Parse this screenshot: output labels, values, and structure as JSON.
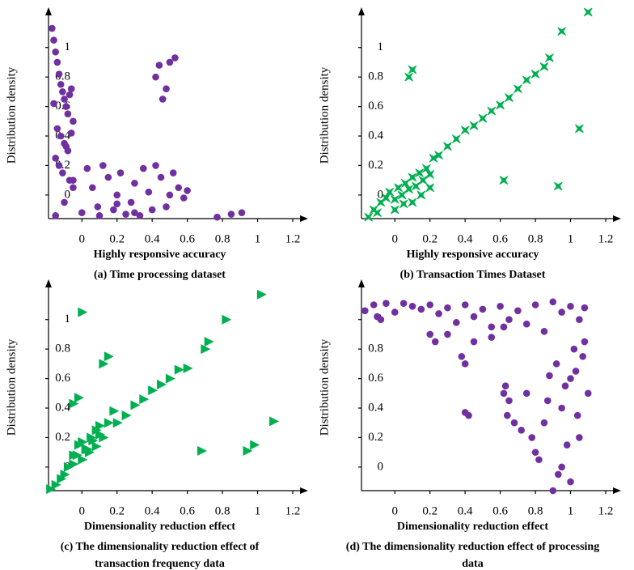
{
  "chart_data": [
    {
      "type": "scatter",
      "marker": "circle",
      "color": "#7030a0",
      "x_label": "Highly responsive accuracy",
      "y_label": "Distribution density",
      "caption": [
        "(a) Time processing dataset"
      ],
      "xlim": [
        -0.19,
        1.26
      ],
      "ylim": [
        -0.16,
        1.24
      ],
      "xticks": [
        0,
        0.2,
        0.4,
        0.6,
        0.8,
        1,
        1.2
      ],
      "yticks": [
        0,
        0.2,
        0.4,
        0.6,
        0.8,
        1
      ],
      "x": [
        -0.17,
        -0.16,
        -0.15,
        -0.14,
        -0.13,
        -0.12,
        -0.11,
        -0.1,
        -0.09,
        -0.08,
        -0.07,
        -0.06,
        -0.05,
        -0.16,
        -0.14,
        -0.12,
        -0.1,
        -0.08,
        -0.06,
        -0.15,
        -0.13,
        -0.11,
        -0.09,
        -0.07,
        -0.05,
        -0.15,
        -0.1,
        -0.05,
        0,
        0.03,
        0.06,
        0.09,
        0.12,
        0.15,
        0.18,
        0.2,
        0.22,
        0.25,
        0.28,
        0.3,
        0.33,
        0.35,
        0.38,
        0.4,
        0.42,
        0.45,
        0.48,
        0.5,
        0.52,
        0.55,
        0.58,
        0.6,
        0.1,
        0.2,
        0.3,
        0.42,
        0.44,
        0.46,
        0.48,
        0.5,
        0.53,
        0.77,
        0.85,
        0.91
      ],
      "values": [
        1.13,
        1.05,
        0.97,
        0.9,
        0.82,
        0.75,
        0.7,
        0.65,
        0.6,
        0.55,
        0.68,
        0.72,
        0.5,
        0.62,
        0.45,
        0.4,
        0.35,
        0.3,
        0.42,
        0.25,
        0.2,
        0.15,
        0.33,
        0.1,
        0.05,
        -0.14,
        -0.05,
        0.1,
        -0.12,
        0.18,
        0.05,
        -0.08,
        0.2,
        0.12,
        -0.1,
        0.0,
        0.15,
        -0.13,
        -0.05,
        0.08,
        -0.14,
        0.18,
        0.02,
        -0.1,
        0.2,
        0.12,
        -0.08,
        0.0,
        0.15,
        0.05,
        -0.02,
        0.03,
        -0.14,
        -0.06,
        -0.12,
        0.8,
        0.88,
        0.65,
        0.72,
        0.9,
        0.93,
        -0.15,
        -0.13,
        -0.12
      ]
    },
    {
      "type": "scatter",
      "marker": "star",
      "color": "#00b050",
      "x_label": "Highly responsive accuracy",
      "y_label": "Distribution density",
      "caption": [
        "(b) Transaction Times Dataset"
      ],
      "xlim": [
        -0.19,
        1.26
      ],
      "ylim": [
        -0.16,
        1.24
      ],
      "xticks": [
        0,
        0.2,
        0.4,
        0.6,
        0.8,
        1,
        1.2
      ],
      "yticks": [
        0,
        0.2,
        0.4,
        0.6,
        0.8,
        1
      ],
      "x": [
        -0.15,
        -0.12,
        -0.1,
        -0.08,
        -0.05,
        -0.03,
        0,
        0.02,
        0.04,
        0.06,
        0.08,
        0.1,
        0.12,
        0.14,
        0.16,
        0.18,
        0.2,
        0.22,
        0.25,
        0.3,
        0.35,
        0.4,
        0.45,
        0.5,
        0.55,
        0.6,
        0.65,
        0.7,
        0.75,
        0.8,
        0.85,
        0.88,
        0.95,
        1.1,
        0.05,
        0.08,
        0.1,
        0.62,
        0.93,
        1.05,
        0.0,
        0.1,
        0.15,
        0.2
      ],
      "values": [
        -0.15,
        -0.1,
        -0.12,
        -0.05,
        -0.02,
        0.02,
        -0.03,
        0.05,
        0.0,
        0.08,
        0.04,
        0.12,
        0.06,
        0.15,
        0.1,
        0.18,
        0.14,
        0.25,
        0.27,
        0.33,
        0.38,
        0.44,
        0.47,
        0.52,
        0.57,
        0.61,
        0.66,
        0.72,
        0.78,
        0.82,
        0.87,
        0.93,
        1.11,
        1.24,
        -0.06,
        0.8,
        0.85,
        0.1,
        0.06,
        0.45,
        -0.1,
        -0.05,
        0.0,
        0.05
      ]
    },
    {
      "type": "scatter",
      "marker": "triangle",
      "color": "#00b050",
      "x_label": "Dimensionality reduction effect",
      "y_label": "Distribution density",
      "caption": [
        "(c) The dimensionality reduction effect of",
        "transaction frequency data"
      ],
      "xlim": [
        -0.19,
        1.26
      ],
      "ylim": [
        -0.16,
        1.24
      ],
      "xticks": [
        0,
        0.2,
        0.4,
        0.6,
        0.8,
        1,
        1.2
      ],
      "yticks": [
        0,
        0.2,
        0.4,
        0.6,
        0.8,
        1
      ],
      "x": [
        -0.18,
        -0.15,
        -0.12,
        -0.1,
        -0.08,
        -0.05,
        -0.03,
        0,
        0.02,
        0.04,
        0.06,
        0.08,
        0.1,
        0.12,
        0.15,
        0.18,
        0.2,
        0.25,
        0.3,
        0.35,
        0.4,
        0.45,
        0.5,
        0.55,
        0.6,
        0.7,
        0.72,
        0.82,
        -0.05,
        -0.02,
        0,
        0.03,
        0.05,
        0.08,
        0.1,
        0,
        -0.05,
        -0.02,
        0.12,
        0.15,
        0.68,
        0.94,
        0.98,
        1.09,
        1.02
      ],
      "values": [
        -0.15,
        -0.12,
        -0.08,
        -0.05,
        0,
        0.02,
        0.08,
        0.05,
        0.12,
        0.1,
        0.18,
        0.14,
        0.22,
        0.2,
        0.3,
        0.38,
        0.3,
        0.35,
        0.42,
        0.46,
        0.52,
        0.56,
        0.6,
        0.66,
        0.67,
        0.8,
        0.85,
        1.0,
        0.08,
        0.15,
        0.17,
        0.12,
        0.2,
        0.25,
        0.28,
        1.05,
        0.43,
        0.47,
        0.7,
        0.75,
        0.11,
        0.11,
        0.15,
        0.31,
        1.17
      ]
    },
    {
      "type": "scatter",
      "marker": "circle",
      "color": "#7030a0",
      "x_label": "Dimensionality reduction effect",
      "y_label": "Distribution density",
      "caption": [
        "(d) The dimensionality reduction effect of processing",
        "data"
      ],
      "xlim": [
        -0.19,
        1.26
      ],
      "ylim": [
        -0.16,
        1.24
      ],
      "xticks": [
        0,
        0.2,
        0.4,
        0.6,
        0.8,
        1,
        1.2
      ],
      "yticks": [
        0,
        0.2,
        0.4,
        0.6,
        0.8,
        1
      ],
      "x": [
        -0.17,
        -0.12,
        -0.08,
        -0.05,
        0,
        0.05,
        0.1,
        0.15,
        0.2,
        0.25,
        0.3,
        0.35,
        0.4,
        0.45,
        0.5,
        0.55,
        0.6,
        0.65,
        0.7,
        0.75,
        0.8,
        0.85,
        0.9,
        0.95,
        1.0,
        1.05,
        1.08,
        -0.1,
        0.3,
        0.45,
        0.55,
        0.62,
        0.2,
        0.23,
        0.38,
        0.4,
        0.4,
        0.42,
        0.63,
        0.62,
        0.65,
        0.64,
        0.68,
        0.72,
        0.75,
        0.78,
        0.8,
        0.82,
        0.85,
        0.88,
        0.9,
        0.92,
        0.95,
        0.97,
        1.0,
        1.02,
        1.05,
        1.08,
        1.1,
        0.93,
        0.98,
        1.03,
        1.07,
        0.87,
        0.95,
        1.0,
        1.04
      ],
      "values": [
        1.06,
        1.1,
        1.0,
        1.11,
        1.05,
        1.11,
        1.09,
        1.07,
        1.1,
        1.04,
        1.08,
        0.98,
        1.1,
        1.02,
        1.07,
        0.95,
        1.09,
        1.0,
        1.06,
        0.97,
        1.1,
        0.92,
        1.12,
        1.05,
        1.09,
        1.0,
        1.08,
        1.02,
        0.9,
        0.85,
        0.88,
        0.95,
        0.9,
        0.85,
        0.75,
        0.7,
        0.37,
        0.35,
        0.55,
        0.5,
        0.45,
        0.35,
        0.3,
        0.25,
        0.5,
        0.2,
        0.1,
        0.05,
        0.3,
        0.62,
        -0.16,
        0.7,
        0.4,
        0.55,
        0.6,
        0.8,
        0.2,
        0.85,
        0.5,
        -0.05,
        0.15,
        0.65,
        0.75,
        0.45,
        0.0,
        -0.1,
        0.35
      ]
    }
  ]
}
